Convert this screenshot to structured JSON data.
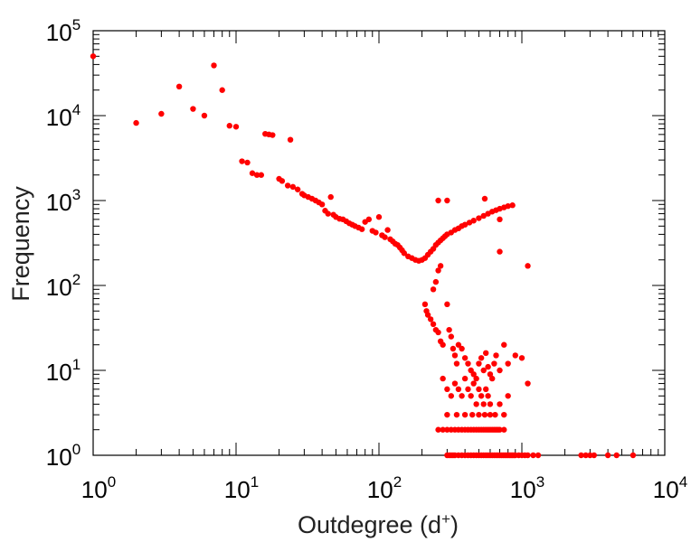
{
  "chart_data": {
    "type": "scatter",
    "title": "",
    "xlabel": "Outdegree (d",
    "xlabel_sup": "+",
    "xlabel_close": ")",
    "ylabel": "Frequency",
    "x_scale": "log",
    "y_scale": "log",
    "xlim": [
      1,
      10000
    ],
    "ylim": [
      1,
      100000
    ],
    "grid": false,
    "legend": "none",
    "marker_color": "#ff0000",
    "x_ticks": [
      {
        "base": "10",
        "exp": "0"
      },
      {
        "base": "10",
        "exp": "1"
      },
      {
        "base": "10",
        "exp": "2"
      },
      {
        "base": "10",
        "exp": "3"
      },
      {
        "base": "10",
        "exp": "4"
      }
    ],
    "y_ticks": [
      {
        "base": "10",
        "exp": "0"
      },
      {
        "base": "10",
        "exp": "1"
      },
      {
        "base": "10",
        "exp": "2"
      },
      {
        "base": "10",
        "exp": "3"
      },
      {
        "base": "10",
        "exp": "4"
      },
      {
        "base": "10",
        "exp": "5"
      }
    ],
    "points": [
      [
        1,
        50000
      ],
      [
        2,
        8200
      ],
      [
        3,
        10500
      ],
      [
        4,
        22000
      ],
      [
        5,
        12000
      ],
      [
        6,
        10000
      ],
      [
        7,
        39000
      ],
      [
        8,
        20000
      ],
      [
        9,
        7600
      ],
      [
        10,
        7400
      ],
      [
        11,
        2900
      ],
      [
        12,
        2800
      ],
      [
        13,
        2100
      ],
      [
        14,
        2000
      ],
      [
        15,
        2000
      ],
      [
        16,
        6100
      ],
      [
        17,
        6000
      ],
      [
        18,
        5900
      ],
      [
        20,
        1800
      ],
      [
        21,
        1700
      ],
      [
        23,
        1500
      ],
      [
        24,
        5200
      ],
      [
        25,
        1450
      ],
      [
        27,
        1350
      ],
      [
        29,
        1200
      ],
      [
        30,
        1150
      ],
      [
        32,
        1100
      ],
      [
        34,
        1050
      ],
      [
        36,
        1000
      ],
      [
        38,
        950
      ],
      [
        40,
        900
      ],
      [
        42,
        760
      ],
      [
        44,
        700
      ],
      [
        46,
        1100
      ],
      [
        48,
        680
      ],
      [
        50,
        640
      ],
      [
        53,
        610
      ],
      [
        56,
        600
      ],
      [
        59,
        570
      ],
      [
        62,
        540
      ],
      [
        65,
        520
      ],
      [
        68,
        500
      ],
      [
        72,
        480
      ],
      [
        76,
        460
      ],
      [
        80,
        560
      ],
      [
        85,
        600
      ],
      [
        90,
        440
      ],
      [
        95,
        420
      ],
      [
        100,
        640
      ],
      [
        105,
        390
      ],
      [
        110,
        370
      ],
      [
        115,
        450
      ],
      [
        120,
        350
      ],
      [
        125,
        330
      ],
      [
        130,
        310
      ],
      [
        135,
        300
      ],
      [
        140,
        280
      ],
      [
        145,
        260
      ],
      [
        150,
        240
      ],
      [
        160,
        220
      ],
      [
        170,
        210
      ],
      [
        180,
        200
      ],
      [
        190,
        195
      ],
      [
        200,
        200
      ],
      [
        210,
        210
      ],
      [
        220,
        230
      ],
      [
        230,
        250
      ],
      [
        240,
        270
      ],
      [
        250,
        300
      ],
      [
        260,
        320
      ],
      [
        270,
        340
      ],
      [
        280,
        360
      ],
      [
        290,
        380
      ],
      [
        300,
        400
      ],
      [
        320,
        420
      ],
      [
        340,
        450
      ],
      [
        360,
        470
      ],
      [
        380,
        500
      ],
      [
        400,
        520
      ],
      [
        430,
        550
      ],
      [
        460,
        580
      ],
      [
        500,
        620
      ],
      [
        540,
        660
      ],
      [
        580,
        700
      ],
      [
        620,
        740
      ],
      [
        660,
        770
      ],
      [
        700,
        800
      ],
      [
        750,
        830
      ],
      [
        800,
        860
      ],
      [
        860,
        880
      ],
      [
        260,
        1000
      ],
      [
        300,
        1000
      ],
      [
        550,
        1050
      ],
      [
        700,
        600
      ],
      [
        700,
        250
      ],
      [
        1100,
        170
      ],
      [
        1100,
        7
      ],
      [
        210,
        60
      ],
      [
        215,
        50
      ],
      [
        220,
        45
      ],
      [
        230,
        40
      ],
      [
        240,
        35
      ],
      [
        250,
        30
      ],
      [
        260,
        28
      ],
      [
        270,
        22
      ],
      [
        280,
        20
      ],
      [
        240,
        90
      ],
      [
        250,
        110
      ],
      [
        260,
        150
      ],
      [
        270,
        170
      ],
      [
        300,
        60
      ],
      [
        310,
        30
      ],
      [
        320,
        25
      ],
      [
        330,
        18
      ],
      [
        340,
        15
      ],
      [
        350,
        12
      ],
      [
        360,
        20
      ],
      [
        380,
        18
      ],
      [
        400,
        14
      ],
      [
        420,
        12
      ],
      [
        440,
        10
      ],
      [
        460,
        9
      ],
      [
        480,
        8
      ],
      [
        500,
        12
      ],
      [
        520,
        14
      ],
      [
        540,
        10
      ],
      [
        560,
        16
      ],
      [
        580,
        11
      ],
      [
        600,
        9
      ],
      [
        620,
        8
      ],
      [
        640,
        12
      ],
      [
        660,
        15
      ],
      [
        700,
        10
      ],
      [
        750,
        20
      ],
      [
        800,
        12
      ],
      [
        900,
        15
      ],
      [
        1000,
        14
      ],
      [
        280,
        8
      ],
      [
        300,
        6
      ],
      [
        320,
        5
      ],
      [
        340,
        7
      ],
      [
        360,
        6
      ],
      [
        380,
        5
      ],
      [
        400,
        8
      ],
      [
        420,
        6
      ],
      [
        440,
        5
      ],
      [
        460,
        7
      ],
      [
        480,
        4
      ],
      [
        500,
        6
      ],
      [
        520,
        5
      ],
      [
        540,
        4
      ],
      [
        560,
        6
      ],
      [
        580,
        5
      ],
      [
        600,
        4
      ],
      [
        650,
        3
      ],
      [
        700,
        4
      ],
      [
        750,
        3
      ],
      [
        800,
        5
      ],
      [
        260,
        2
      ],
      [
        280,
        2
      ],
      [
        300,
        2
      ],
      [
        320,
        2
      ],
      [
        340,
        2
      ],
      [
        360,
        2
      ],
      [
        380,
        2
      ],
      [
        400,
        2
      ],
      [
        420,
        2
      ],
      [
        440,
        2
      ],
      [
        460,
        2
      ],
      [
        480,
        2
      ],
      [
        500,
        2
      ],
      [
        520,
        2
      ],
      [
        540,
        2
      ],
      [
        560,
        2
      ],
      [
        580,
        2
      ],
      [
        600,
        2
      ],
      [
        620,
        2
      ],
      [
        640,
        2
      ],
      [
        660,
        2
      ],
      [
        680,
        2
      ],
      [
        700,
        2
      ],
      [
        750,
        2
      ],
      [
        300,
        3
      ],
      [
        350,
        3
      ],
      [
        400,
        3
      ],
      [
        450,
        3
      ],
      [
        500,
        3
      ],
      [
        550,
        3
      ],
      [
        600,
        3
      ],
      [
        300,
        1
      ],
      [
        310,
        1
      ],
      [
        320,
        1
      ],
      [
        330,
        1
      ],
      [
        340,
        1
      ],
      [
        360,
        1
      ],
      [
        380,
        1
      ],
      [
        400,
        1
      ],
      [
        420,
        1
      ],
      [
        440,
        1
      ],
      [
        460,
        1
      ],
      [
        480,
        1
      ],
      [
        500,
        1
      ],
      [
        520,
        1
      ],
      [
        540,
        1
      ],
      [
        560,
        1
      ],
      [
        580,
        1
      ],
      [
        600,
        1
      ],
      [
        620,
        1
      ],
      [
        640,
        1
      ],
      [
        660,
        1
      ],
      [
        680,
        1
      ],
      [
        700,
        1
      ],
      [
        720,
        1
      ],
      [
        740,
        1
      ],
      [
        760,
        1
      ],
      [
        780,
        1
      ],
      [
        800,
        1
      ],
      [
        820,
        1
      ],
      [
        840,
        1
      ],
      [
        860,
        1
      ],
      [
        880,
        1
      ],
      [
        900,
        1
      ],
      [
        950,
        1
      ],
      [
        1000,
        1
      ],
      [
        1050,
        1
      ],
      [
        1100,
        1
      ],
      [
        1200,
        1
      ],
      [
        1300,
        1
      ],
      [
        2600,
        1
      ],
      [
        2800,
        1
      ],
      [
        3000,
        1
      ],
      [
        3200,
        1
      ],
      [
        4000,
        1
      ],
      [
        4600,
        1
      ],
      [
        6000,
        1
      ]
    ]
  }
}
